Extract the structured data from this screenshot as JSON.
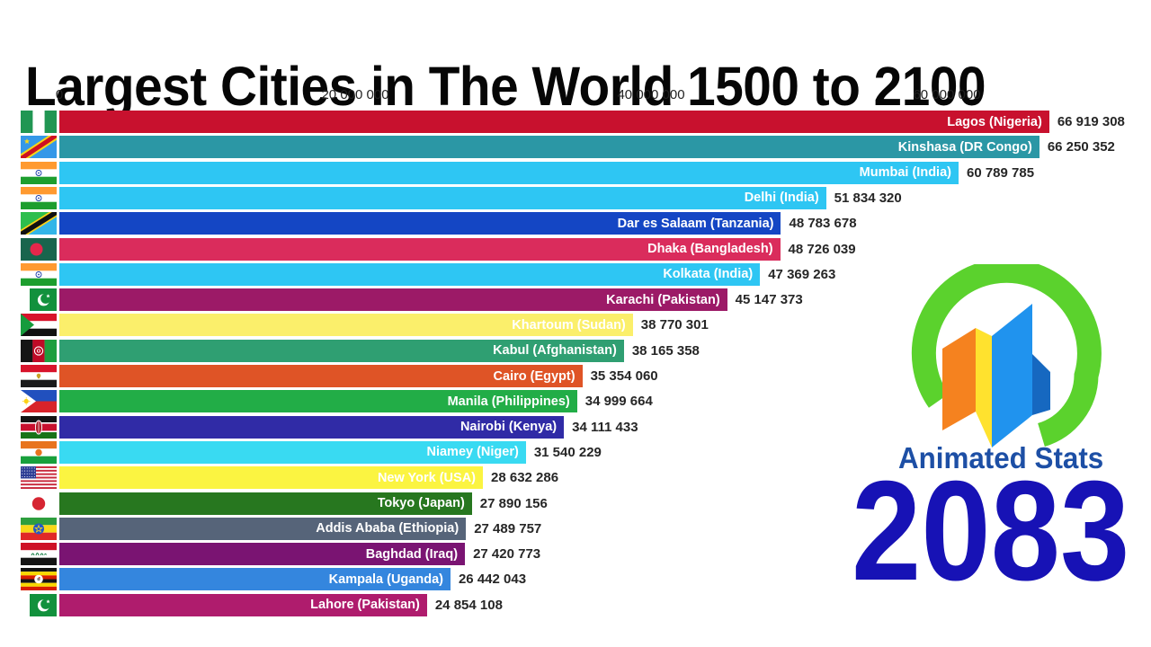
{
  "page": {
    "background": "#ffffff"
  },
  "chart_data": {
    "type": "bar",
    "orientation": "horizontal",
    "title": "Largest Cities in The World 1500 to 2100",
    "year": "2083",
    "watermark": "Animated Stats",
    "grid": false,
    "legend": false,
    "xlim": [
      0,
      73500000
    ],
    "x_ticks": [
      {
        "value": 0,
        "label": "0"
      },
      {
        "value": 20000000,
        "label": "20 000 000"
      },
      {
        "value": 40000000,
        "label": "40 000 000"
      },
      {
        "value": 60000000,
        "label": "60 000 000"
      }
    ],
    "rows": [
      {
        "rank": 1,
        "label": "Lagos (Nigeria)",
        "city": "Lagos",
        "country": "Nigeria",
        "flag": "nigeria",
        "value": 66919308,
        "value_label": "66 919 308",
        "color": "#C8112E"
      },
      {
        "rank": 2,
        "label": "Kinshasa (DR Congo)",
        "city": "Kinshasa",
        "country": "DR Congo",
        "flag": "drcongo",
        "value": 66250352,
        "value_label": "66 250 352",
        "color": "#2B97A5"
      },
      {
        "rank": 3,
        "label": "Mumbai (India)",
        "city": "Mumbai",
        "country": "India",
        "flag": "india",
        "value": 60789785,
        "value_label": "60 789 785",
        "color": "#2EC6F3"
      },
      {
        "rank": 4,
        "label": "Delhi (India)",
        "city": "Delhi",
        "country": "India",
        "flag": "india",
        "value": 51834320,
        "value_label": "51 834 320",
        "color": "#2EC6F3"
      },
      {
        "rank": 5,
        "label": "Dar es Salaam (Tanzania)",
        "city": "Dar es Salaam",
        "country": "Tanzania",
        "flag": "tanzania",
        "value": 48783678,
        "value_label": "48 783 678",
        "color": "#1446C4"
      },
      {
        "rank": 6,
        "label": "Dhaka (Bangladesh)",
        "city": "Dhaka",
        "country": "Bangladesh",
        "flag": "bangladesh",
        "value": 48726039,
        "value_label": "48 726 039",
        "color": "#DA2C5C"
      },
      {
        "rank": 7,
        "label": "Kolkata (India)",
        "city": "Kolkata",
        "country": "India",
        "flag": "india",
        "value": 47369263,
        "value_label": "47 369 263",
        "color": "#2EC6F3"
      },
      {
        "rank": 8,
        "label": "Karachi (Pakistan)",
        "city": "Karachi",
        "country": "Pakistan",
        "flag": "pakistan",
        "value": 45147373,
        "value_label": "45 147 373",
        "color": "#9C1A67"
      },
      {
        "rank": 9,
        "label": "Khartoum (Sudan)",
        "city": "Khartoum",
        "country": "Sudan",
        "flag": "sudan",
        "value": 38770301,
        "value_label": "38 770 301",
        "color": "#FBEF6B"
      },
      {
        "rank": 10,
        "label": "Kabul (Afghanistan)",
        "city": "Kabul",
        "country": "Afghanistan",
        "flag": "afghanistan",
        "value": 38165358,
        "value_label": "38 165 358",
        "color": "#2F9F72"
      },
      {
        "rank": 11,
        "label": "Cairo (Egypt)",
        "city": "Cairo",
        "country": "Egypt",
        "flag": "egypt",
        "value": 35354060,
        "value_label": "35 354 060",
        "color": "#DF5426"
      },
      {
        "rank": 12,
        "label": "Manila (Philippines)",
        "city": "Manila",
        "country": "Philippines",
        "flag": "philippines",
        "value": 34999664,
        "value_label": "34 999 664",
        "color": "#22AD47"
      },
      {
        "rank": 13,
        "label": "Nairobi (Kenya)",
        "city": "Nairobi",
        "country": "Kenya",
        "flag": "kenya",
        "value": 34111433,
        "value_label": "34 111 433",
        "color": "#302BA6"
      },
      {
        "rank": 14,
        "label": "Niamey (Niger)",
        "city": "Niamey",
        "country": "Niger",
        "flag": "niger",
        "value": 31540229,
        "value_label": "31 540 229",
        "color": "#39DAF2"
      },
      {
        "rank": 15,
        "label": "New York (USA)",
        "city": "New York",
        "country": "USA",
        "flag": "usa",
        "value": 28632286,
        "value_label": "28 632 286",
        "color": "#FBF441"
      },
      {
        "rank": 16,
        "label": "Tokyo (Japan)",
        "city": "Tokyo",
        "country": "Japan",
        "flag": "japan",
        "value": 27890156,
        "value_label": "27 890 156",
        "color": "#27771F"
      },
      {
        "rank": 17,
        "label": "Addis Ababa (Ethiopia)",
        "city": "Addis Ababa",
        "country": "Ethiopia",
        "flag": "ethiopia",
        "value": 27489757,
        "value_label": "27 489 757",
        "color": "#566479"
      },
      {
        "rank": 18,
        "label": "Baghdad (Iraq)",
        "city": "Baghdad",
        "country": "Iraq",
        "flag": "iraq",
        "value": 27420773,
        "value_label": "27 420 773",
        "color": "#7A1472"
      },
      {
        "rank": 19,
        "label": "Kampala (Uganda)",
        "city": "Kampala",
        "country": "Uganda",
        "flag": "uganda",
        "value": 26442043,
        "value_label": "26 442 043",
        "color": "#3486DE"
      },
      {
        "rank": 20,
        "label": "Lahore (Pakistan)",
        "city": "Lahore",
        "country": "Pakistan",
        "flag": "pakistan",
        "value": 24854108,
        "value_label": "24 854 108",
        "color": "#AF1C6D"
      }
    ]
  },
  "logo": {
    "text": "Animated Stats",
    "text_color": "#1D4FA5",
    "year_color": "#1712B5",
    "ring_color": "#5BD22D",
    "shape_colors": [
      "#F5821F",
      "#FFE22E",
      "#2093EE",
      "#1668C0"
    ]
  }
}
